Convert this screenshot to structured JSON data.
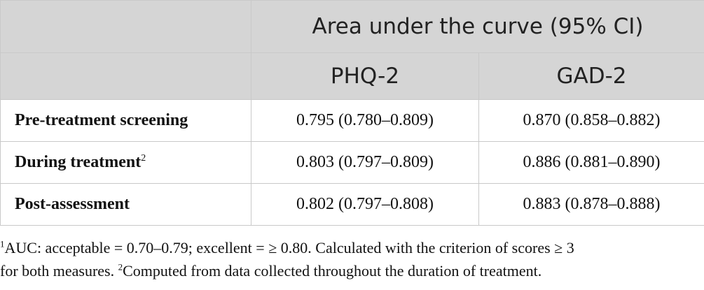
{
  "table": {
    "header": {
      "group_label": "Area under the curve (95% CI)",
      "columns": [
        "PHQ-2",
        "GAD-2"
      ]
    },
    "rows": [
      {
        "label": "Pre-treatment screening",
        "sup": "",
        "phq2": "0.795 (0.780–0.809)",
        "gad2": "0.870 (0.858–0.882)"
      },
      {
        "label": "During treatment",
        "sup": "2",
        "phq2": "0.803 (0.797–0.809)",
        "gad2": "0.886 (0.881–0.890)"
      },
      {
        "label": "Post-assessment",
        "sup": "",
        "phq2": "0.802 (0.797–0.808)",
        "gad2": "0.883 (0.878–0.888)"
      }
    ]
  },
  "footnote": {
    "line1_sup": "1",
    "line1": "AUC: acceptable = 0.70–0.79; excellent = ≥ 0.80. Calculated with the criterion of scores ≥ 3",
    "line2_prefix": "for both measures. ",
    "line2_sup": "2",
    "line2": "Computed from data collected throughout the duration of treatment."
  }
}
